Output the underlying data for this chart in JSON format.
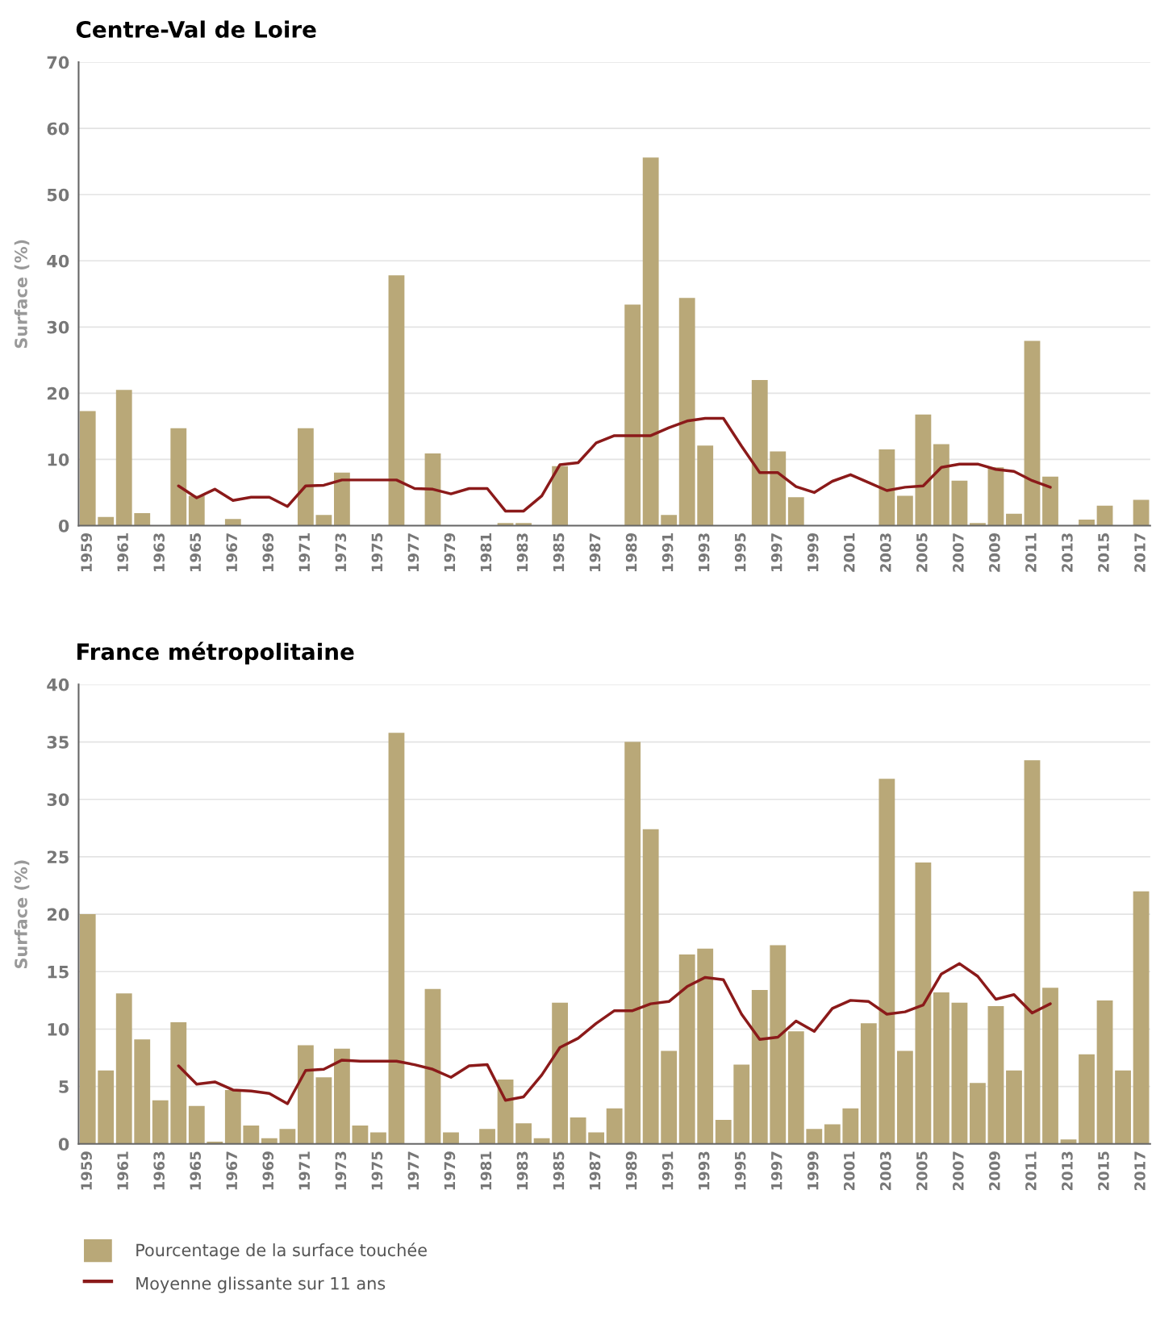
{
  "chart_data": [
    {
      "type": "bar",
      "title": "Centre-Val de Loire",
      "ylabel": "Surface (%)",
      "categories": [
        "1959",
        null,
        "1961",
        null,
        "1963",
        null,
        "1965",
        null,
        "1967",
        null,
        "1969",
        null,
        "1971",
        null,
        "1973",
        null,
        "1975",
        null,
        "1977",
        null,
        "1979",
        null,
        "1981",
        null,
        "1983",
        null,
        "1985",
        null,
        "1987",
        null,
        "1989",
        null,
        "1991",
        null,
        "1993",
        null,
        "1995",
        null,
        "1997",
        null,
        "1999",
        null,
        "2001",
        null,
        "2003",
        null,
        "2005",
        null,
        "2007",
        null,
        "2009",
        null,
        "2011",
        null,
        "2013",
        null,
        "2015",
        null,
        "2017"
      ],
      "series": [
        {
          "color": "#b9a878",
          "values": [
            17.3,
            1.3,
            20.5,
            1.9,
            0,
            14.7,
            4.5,
            0,
            1.0,
            0,
            0,
            0,
            14.7,
            1.6,
            8.0,
            0,
            0,
            37.8,
            0,
            10.9,
            0,
            0,
            0,
            0.4,
            0.4,
            0,
            9.0,
            0,
            0,
            0,
            33.4,
            55.6,
            1.6,
            34.4,
            12.1,
            0,
            0,
            22.0,
            11.2,
            4.3,
            0,
            0,
            0,
            0,
            11.5,
            4.5,
            16.8,
            12.3,
            6.8,
            0.4,
            8.8,
            1.8,
            27.9,
            7.4,
            0,
            0.9,
            3.0,
            0,
            3.9
          ]
        },
        {
          "type": "line",
          "color": "#8b1a1a",
          "values": [
            null,
            null,
            null,
            null,
            null,
            6.0,
            4.2,
            5.5,
            3.8,
            4.3,
            4.3,
            2.9,
            6.0,
            6.1,
            6.9,
            6.9,
            6.9,
            6.9,
            5.6,
            5.5,
            4.8,
            5.6,
            5.6,
            2.2,
            2.2,
            4.5,
            9.2,
            9.5,
            12.5,
            13.6,
            13.6,
            13.6,
            14.8,
            15.8,
            16.2,
            16.2,
            12.0,
            8.0,
            8.0,
            5.9,
            5.0,
            6.7,
            7.7,
            6.5,
            5.3,
            5.8,
            6.0,
            8.8,
            9.3,
            9.3,
            8.5,
            8.2,
            6.8,
            5.8,
            null,
            null,
            null,
            null,
            null
          ]
        }
      ],
      "ylim": [
        0,
        70
      ],
      "yticks": [
        0,
        10,
        20,
        30,
        40,
        50,
        60,
        70
      ],
      "grid": "y",
      "legend": false
    },
    {
      "type": "bar",
      "title": "France métropolitaine",
      "ylabel": "Surface (%)",
      "categories": [
        "1959",
        null,
        "1961",
        null,
        "1963",
        null,
        "1965",
        null,
        "1967",
        null,
        "1969",
        null,
        "1971",
        null,
        "1973",
        null,
        "1975",
        null,
        "1977",
        null,
        "1979",
        null,
        "1981",
        null,
        "1983",
        null,
        "1985",
        null,
        "1987",
        null,
        "1989",
        null,
        "1991",
        null,
        "1993",
        null,
        "1995",
        null,
        "1997",
        null,
        "1999",
        null,
        "2001",
        null,
        "2003",
        null,
        "2005",
        null,
        "2007",
        null,
        "2009",
        null,
        "2011",
        null,
        "2013",
        null,
        "2015",
        null,
        "2017"
      ],
      "series": [
        {
          "name": "Pourcentage de la surface touchée",
          "color": "#b9a878",
          "values": [
            20.0,
            6.4,
            13.1,
            9.1,
            3.8,
            10.6,
            3.3,
            0.2,
            4.7,
            1.6,
            0.5,
            1.3,
            8.6,
            5.8,
            8.3,
            1.6,
            1.0,
            35.8,
            0,
            13.5,
            1.0,
            0,
            1.3,
            5.6,
            1.8,
            0.5,
            12.3,
            2.3,
            1.0,
            3.1,
            35.0,
            27.4,
            8.1,
            16.5,
            17.0,
            2.1,
            6.9,
            13.4,
            17.3,
            9.8,
            1.3,
            1.7,
            3.1,
            10.5,
            31.8,
            8.1,
            24.5,
            13.2,
            12.3,
            5.3,
            12.0,
            6.4,
            33.4,
            13.6,
            0.4,
            7.8,
            12.5,
            6.4,
            22.0
          ]
        },
        {
          "type": "line",
          "name": "Moyenne glissante sur 11 ans",
          "color": "#8b1a1a",
          "values": [
            null,
            null,
            null,
            null,
            null,
            6.8,
            5.2,
            5.4,
            4.7,
            4.6,
            4.4,
            3.5,
            6.4,
            6.5,
            7.3,
            7.2,
            7.2,
            7.2,
            6.9,
            6.5,
            5.8,
            6.8,
            6.9,
            3.8,
            4.1,
            6.0,
            8.4,
            9.2,
            10.5,
            11.6,
            11.6,
            12.2,
            12.4,
            13.7,
            14.5,
            14.3,
            11.3,
            9.1,
            9.3,
            10.7,
            9.8,
            11.8,
            12.5,
            12.4,
            11.3,
            11.5,
            12.1,
            14.8,
            15.7,
            14.6,
            12.6,
            13.0,
            11.4,
            12.2,
            null,
            null,
            null,
            null,
            null
          ]
        }
      ],
      "ylim": [
        0,
        40
      ],
      "yticks": [
        0,
        5,
        10,
        15,
        20,
        25,
        30,
        35,
        40
      ],
      "grid": "y",
      "legend": "bottom"
    }
  ]
}
